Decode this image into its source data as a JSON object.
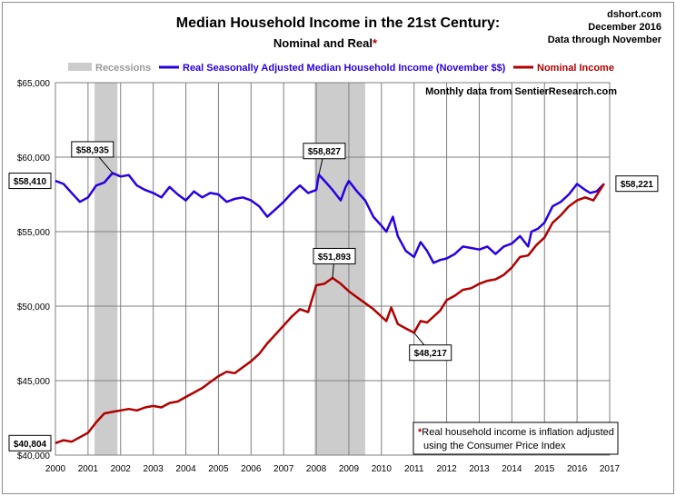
{
  "header": {
    "title": "Median Household Income in the 21st Century:",
    "subtitle_main": "Nominal and Real",
    "subtitle_star": "*",
    "source_site": "dshort.com",
    "source_date": "December 2016",
    "source_through": "Data through November"
  },
  "note": {
    "monthly": "Monthly data from SentierResearch.com",
    "footnote_star": "*",
    "footnote_line1": "Real household  income is inflation adjusted",
    "footnote_line2": "using  the Consumer Price Index"
  },
  "colors": {
    "real": "#2a00e0",
    "nominal": "#b00000",
    "recession": "#cccccc",
    "grid": "#7f7f7f",
    "title_star": "#b00000"
  },
  "chart_data": {
    "type": "line",
    "title": "Median Household Income in the 21st Century:",
    "subtitle": "Nominal and Real*",
    "grid": true,
    "legend_placement": "top",
    "xlim": [
      2000,
      2017
    ],
    "ylim": [
      40000,
      65000
    ],
    "x_ticks": [
      "2000",
      "2001",
      "2002",
      "2003",
      "2004",
      "2005",
      "2006",
      "2007",
      "2008",
      "2009",
      "2010",
      "2011",
      "2012",
      "2013",
      "2014",
      "2015",
      "2016",
      "2017"
    ],
    "y_ticks": [
      "$40,000",
      "$45,000",
      "$50,000",
      "$55,000",
      "$60,000",
      "$65,000"
    ],
    "y_tick_values": [
      40000,
      45000,
      50000,
      55000,
      60000,
      65000
    ],
    "legend": [
      {
        "name": "Recessions",
        "kind": "band"
      },
      {
        "name": "Real Seasonally Adjusted Median Household Income (November $$)",
        "kind": "line"
      },
      {
        "name": "Nominal Income",
        "kind": "line"
      }
    ],
    "recessions": [
      [
        2001.2,
        2001.9
      ],
      [
        2007.95,
        2009.5
      ]
    ],
    "series": [
      {
        "name": "Real Seasonally Adjusted Median Household Income (November $$)",
        "points": [
          [
            2000.0,
            58410
          ],
          [
            2000.25,
            58200
          ],
          [
            2000.5,
            57600
          ],
          [
            2000.75,
            57000
          ],
          [
            2001.0,
            57300
          ],
          [
            2001.25,
            58100
          ],
          [
            2001.5,
            58300
          ],
          [
            2001.75,
            58935
          ],
          [
            2002.0,
            58700
          ],
          [
            2002.25,
            58800
          ],
          [
            2002.5,
            58100
          ],
          [
            2002.75,
            57800
          ],
          [
            2003.0,
            57600
          ],
          [
            2003.25,
            57300
          ],
          [
            2003.5,
            58000
          ],
          [
            2003.75,
            57500
          ],
          [
            2004.0,
            57100
          ],
          [
            2004.25,
            57700
          ],
          [
            2004.5,
            57300
          ],
          [
            2004.75,
            57600
          ],
          [
            2005.0,
            57500
          ],
          [
            2005.25,
            57000
          ],
          [
            2005.5,
            57200
          ],
          [
            2005.75,
            57300
          ],
          [
            2006.0,
            57100
          ],
          [
            2006.25,
            56700
          ],
          [
            2006.5,
            56000
          ],
          [
            2006.75,
            56500
          ],
          [
            2007.0,
            57000
          ],
          [
            2007.25,
            57600
          ],
          [
            2007.5,
            58100
          ],
          [
            2007.75,
            57600
          ],
          [
            2008.0,
            57800
          ],
          [
            2008.08,
            58827
          ],
          [
            2008.3,
            58300
          ],
          [
            2008.5,
            57800
          ],
          [
            2008.75,
            57100
          ],
          [
            2008.9,
            58000
          ],
          [
            2009.0,
            58400
          ],
          [
            2009.25,
            57700
          ],
          [
            2009.5,
            57100
          ],
          [
            2009.75,
            56000
          ],
          [
            2010.0,
            55400
          ],
          [
            2010.15,
            55000
          ],
          [
            2010.35,
            56000
          ],
          [
            2010.5,
            54700
          ],
          [
            2010.75,
            53700
          ],
          [
            2011.0,
            53300
          ],
          [
            2011.2,
            54300
          ],
          [
            2011.4,
            53700
          ],
          [
            2011.6,
            52900
          ],
          [
            2011.8,
            53100
          ],
          [
            2012.0,
            53200
          ],
          [
            2012.25,
            53500
          ],
          [
            2012.5,
            54000
          ],
          [
            2012.75,
            53900
          ],
          [
            2013.0,
            53800
          ],
          [
            2013.25,
            54000
          ],
          [
            2013.5,
            53500
          ],
          [
            2013.75,
            54000
          ],
          [
            2014.0,
            54200
          ],
          [
            2014.25,
            54700
          ],
          [
            2014.5,
            54000
          ],
          [
            2014.6,
            55000
          ],
          [
            2014.8,
            55200
          ],
          [
            2015.0,
            55600
          ],
          [
            2015.25,
            56700
          ],
          [
            2015.5,
            57000
          ],
          [
            2015.75,
            57500
          ],
          [
            2016.0,
            58200
          ],
          [
            2016.25,
            57800
          ],
          [
            2016.4,
            57600
          ],
          [
            2016.6,
            57700
          ],
          [
            2016.83,
            58221
          ]
        ]
      },
      {
        "name": "Nominal Income",
        "points": [
          [
            2000.0,
            40804
          ],
          [
            2000.25,
            41000
          ],
          [
            2000.5,
            40900
          ],
          [
            2000.75,
            41200
          ],
          [
            2001.0,
            41500
          ],
          [
            2001.25,
            42200
          ],
          [
            2001.5,
            42800
          ],
          [
            2001.75,
            42900
          ],
          [
            2002.0,
            43000
          ],
          [
            2002.25,
            43100
          ],
          [
            2002.5,
            43000
          ],
          [
            2002.75,
            43200
          ],
          [
            2003.0,
            43300
          ],
          [
            2003.25,
            43200
          ],
          [
            2003.5,
            43500
          ],
          [
            2003.75,
            43600
          ],
          [
            2004.0,
            43900
          ],
          [
            2004.25,
            44200
          ],
          [
            2004.5,
            44500
          ],
          [
            2004.75,
            44900
          ],
          [
            2005.0,
            45300
          ],
          [
            2005.25,
            45600
          ],
          [
            2005.5,
            45500
          ],
          [
            2005.75,
            45900
          ],
          [
            2006.0,
            46300
          ],
          [
            2006.25,
            46800
          ],
          [
            2006.5,
            47500
          ],
          [
            2006.75,
            48100
          ],
          [
            2007.0,
            48700
          ],
          [
            2007.25,
            49300
          ],
          [
            2007.5,
            49800
          ],
          [
            2007.75,
            49600
          ],
          [
            2008.0,
            51400
          ],
          [
            2008.25,
            51500
          ],
          [
            2008.5,
            51893
          ],
          [
            2008.75,
            51500
          ],
          [
            2009.0,
            51000
          ],
          [
            2009.25,
            50600
          ],
          [
            2009.5,
            50200
          ],
          [
            2009.75,
            49800
          ],
          [
            2010.0,
            49300
          ],
          [
            2010.15,
            49000
          ],
          [
            2010.3,
            49900
          ],
          [
            2010.5,
            48800
          ],
          [
            2010.75,
            48500
          ],
          [
            2011.0,
            48217
          ],
          [
            2011.2,
            49000
          ],
          [
            2011.4,
            48900
          ],
          [
            2011.6,
            49300
          ],
          [
            2011.8,
            49700
          ],
          [
            2012.0,
            50400
          ],
          [
            2012.25,
            50700
          ],
          [
            2012.5,
            51100
          ],
          [
            2012.75,
            51200
          ],
          [
            2013.0,
            51500
          ],
          [
            2013.25,
            51700
          ],
          [
            2013.5,
            51800
          ],
          [
            2013.75,
            52100
          ],
          [
            2014.0,
            52600
          ],
          [
            2014.25,
            53300
          ],
          [
            2014.5,
            53400
          ],
          [
            2014.75,
            54100
          ],
          [
            2015.0,
            54600
          ],
          [
            2015.25,
            55600
          ],
          [
            2015.5,
            56100
          ],
          [
            2015.75,
            56700
          ],
          [
            2016.0,
            57100
          ],
          [
            2016.25,
            57300
          ],
          [
            2016.5,
            57100
          ],
          [
            2016.83,
            58221
          ]
        ]
      }
    ],
    "annotations": [
      {
        "label": "$58,935",
        "series": 0,
        "x": 2001.75,
        "y": 58935
      },
      {
        "label": "$58,827",
        "series": 0,
        "x": 2008.08,
        "y": 58827
      },
      {
        "label": "$51,893",
        "series": 1,
        "x": 2008.5,
        "y": 51893
      },
      {
        "label": "$48,217",
        "series": 1,
        "x": 2011.0,
        "y": 48217
      },
      {
        "label": "$58,410",
        "series": 0,
        "x": 2000.0,
        "y": 58410
      },
      {
        "label": "$40,804",
        "series": 1,
        "x": 2000.0,
        "y": 40804
      },
      {
        "label": "$58,221",
        "series": 0,
        "x": 2016.83,
        "y": 58221
      }
    ]
  }
}
